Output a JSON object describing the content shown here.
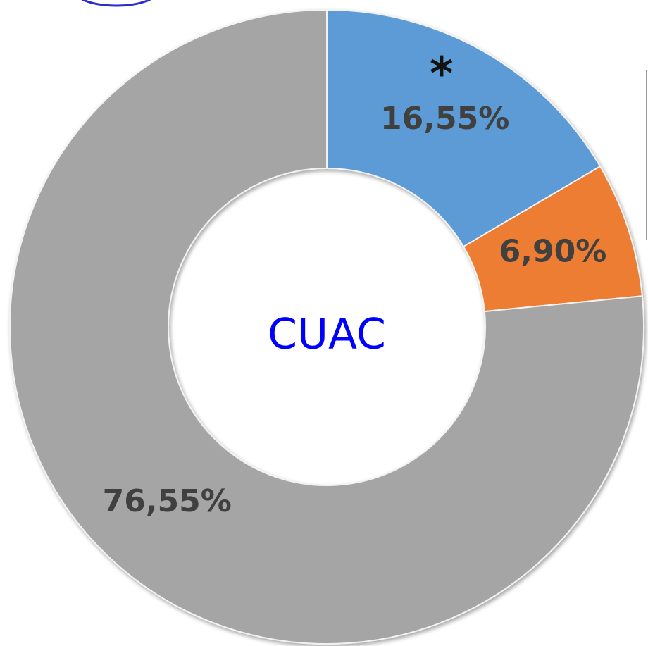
{
  "chart_data": {
    "type": "pie",
    "center_text": "CUAC",
    "annotation": "*",
    "series": [
      {
        "values": [
          16.55,
          6.9,
          76.55
        ],
        "value_labels": [
          "16,55%",
          "6,90%",
          "76,55%"
        ],
        "colors": [
          "#5b9bd5",
          "#ed7d31",
          "#a5a5a5"
        ]
      }
    ]
  }
}
